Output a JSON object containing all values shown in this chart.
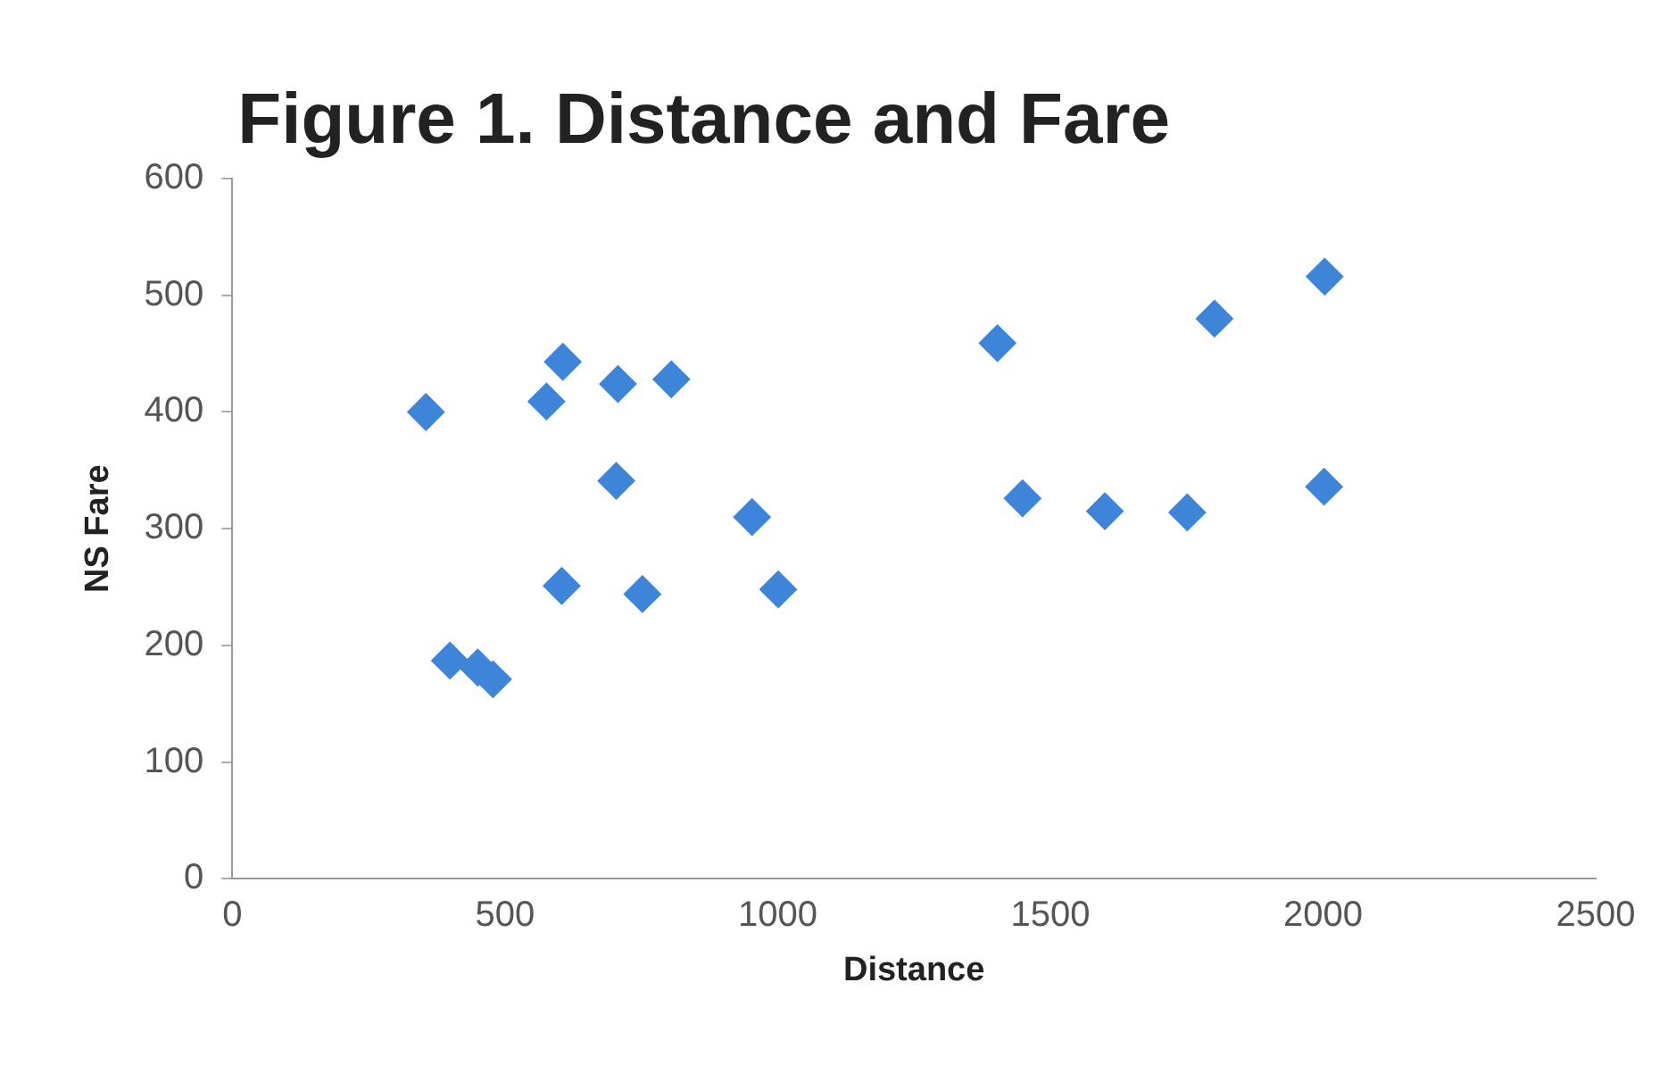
{
  "chart_data": {
    "type": "scatter",
    "title": "Figure 1. Distance and Fare",
    "xlabel": "Distance",
    "ylabel": "NS Fare",
    "x": [
      355,
      399,
      450,
      478,
      576,
      606,
      604,
      707,
      704,
      805,
      752,
      953,
      1001,
      1403,
      1449,
      1600,
      1751,
      1801,
      2002,
      2003
    ],
    "series": [
      {
        "color": "#3d85d8",
        "values": [
          400,
          187,
          181,
          171,
          409,
          443,
          251,
          424,
          341,
          428,
          244,
          310,
          248,
          459,
          326,
          315,
          314,
          480,
          336,
          516
        ]
      }
    ],
    "xlim": [
      0,
      2500
    ],
    "xticks": [
      0,
      500,
      1000,
      1500,
      2000,
      2500
    ],
    "ylim": [
      0,
      600
    ],
    "yticks": [
      0,
      100,
      200,
      300,
      400,
      500,
      600
    ],
    "grid": false,
    "legend": false,
    "marker": "diamond"
  }
}
